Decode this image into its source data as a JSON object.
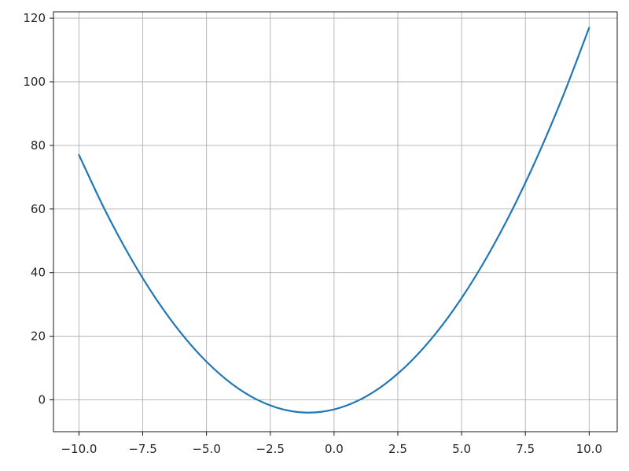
{
  "chart_data": {
    "type": "line",
    "title": "",
    "xlabel": "",
    "ylabel": "",
    "xlim": [
      -11,
      11.1
    ],
    "ylim": [
      -10,
      122
    ],
    "grid": true,
    "x_ticks": [
      -10.0,
      -7.5,
      -5.0,
      -2.5,
      0.0,
      2.5,
      5.0,
      7.5,
      10.0
    ],
    "x_tick_labels": [
      "−10.0",
      "−7.5",
      "−5.0",
      "−2.5",
      "0.0",
      "2.5",
      "5.0",
      "7.5",
      "10.0"
    ],
    "y_ticks": [
      0,
      20,
      40,
      60,
      80,
      100,
      120
    ],
    "y_tick_labels": [
      "0",
      "20",
      "40",
      "60",
      "80",
      "100",
      "120"
    ],
    "series": [
      {
        "color": "#1f77b4",
        "x": [
          -10,
          -9,
          -8,
          -7,
          -6,
          -5,
          -4,
          -3,
          -2,
          -1,
          0,
          1,
          2,
          3,
          4,
          5,
          6,
          7,
          8,
          9,
          10
        ],
        "y": [
          77,
          60,
          45,
          32,
          21,
          12,
          5,
          0,
          -3,
          -4,
          -3,
          0,
          5,
          12,
          21,
          32,
          45,
          60,
          77,
          96,
          117
        ]
      }
    ]
  }
}
